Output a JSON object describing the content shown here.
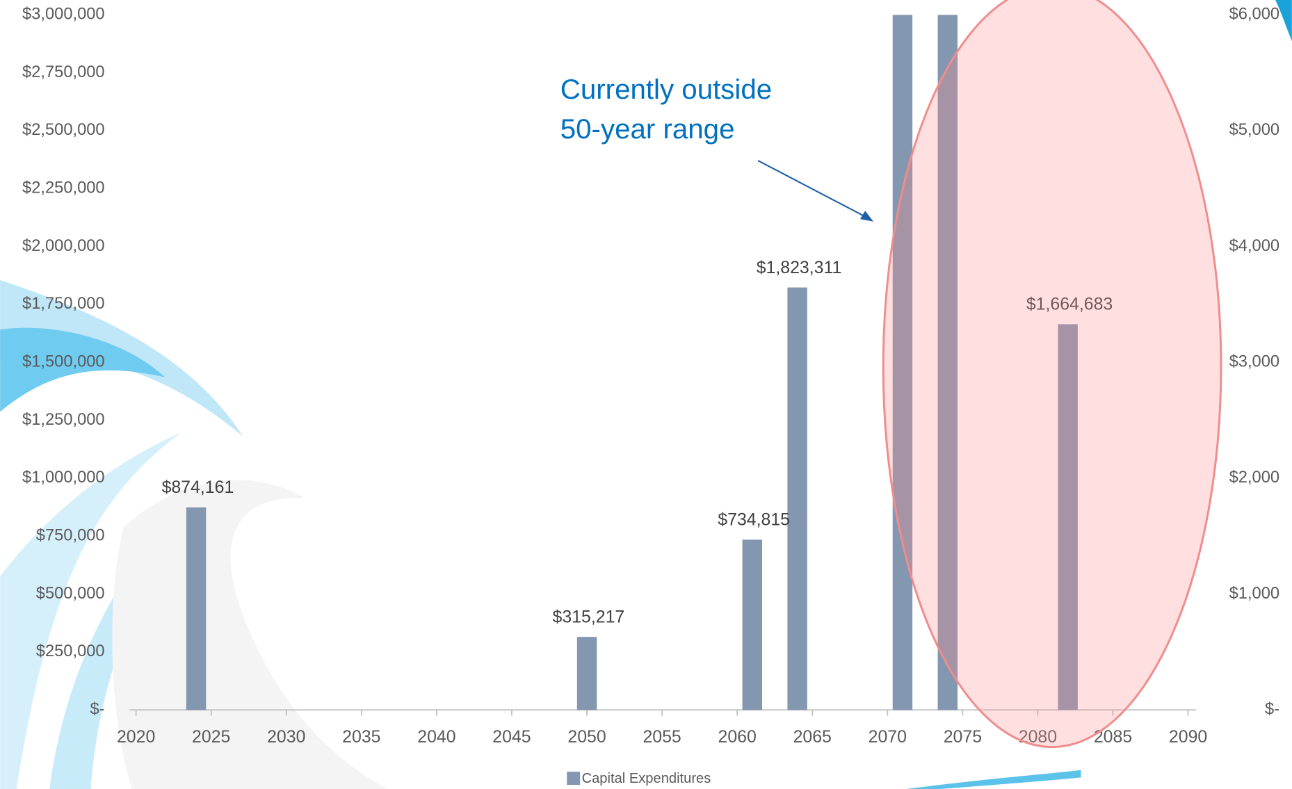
{
  "chart_data": {
    "type": "bar",
    "annotation": [
      "Currently outside",
      "50-year range"
    ],
    "x": [
      2024,
      2050,
      2061,
      2064,
      2071,
      2074,
      2082
    ],
    "series": [
      {
        "name": "Capital Expenditures",
        "color": "#8497b0",
        "values": [
          874161,
          315217,
          734815,
          1823311,
          3000000,
          3000000,
          1664683
        ],
        "value_labels": [
          "$874,161",
          "$315,217",
          "$734,815",
          "$1,823,311",
          null,
          null,
          "$1,664,683"
        ]
      }
    ],
    "xlim": [
      2020,
      2090
    ],
    "xticks": [
      2020,
      2025,
      2030,
      2035,
      2040,
      2045,
      2050,
      2055,
      2060,
      2065,
      2070,
      2075,
      2080,
      2085,
      2090
    ],
    "ylim": [
      0,
      3000000
    ],
    "yticks": [
      {
        "value": 0,
        "label": "$-"
      },
      {
        "value": 250000,
        "label": "$250,000"
      },
      {
        "value": 500000,
        "label": "$500,000"
      },
      {
        "value": 750000,
        "label": "$750,000"
      },
      {
        "value": 1000000,
        "label": "$1,000,000"
      },
      {
        "value": 1250000,
        "label": "$1,250,000"
      },
      {
        "value": 1500000,
        "label": "$1,500,000"
      },
      {
        "value": 1750000,
        "label": "$1,750,000"
      },
      {
        "value": 2000000,
        "label": "$2,000,000"
      },
      {
        "value": 2250000,
        "label": "$2,250,000"
      },
      {
        "value": 2500000,
        "label": "$2,500,000"
      },
      {
        "value": 2750000,
        "label": "$2,750,000"
      },
      {
        "value": 3000000,
        "label": "$3,000,000"
      }
    ],
    "y2lim": [
      0,
      6000
    ],
    "y2ticks": [
      {
        "value": 0,
        "label": "$-"
      },
      {
        "value": 1000,
        "label": "$1,000"
      },
      {
        "value": 2000,
        "label": "$2,000"
      },
      {
        "value": 3000,
        "label": "$3,000"
      },
      {
        "value": 4000,
        "label": "$4,000"
      },
      {
        "value": 5000,
        "label": "$5,000"
      },
      {
        "value": 6000,
        "label": "$6,000"
      }
    ],
    "legend": "bottom",
    "grid": false
  }
}
